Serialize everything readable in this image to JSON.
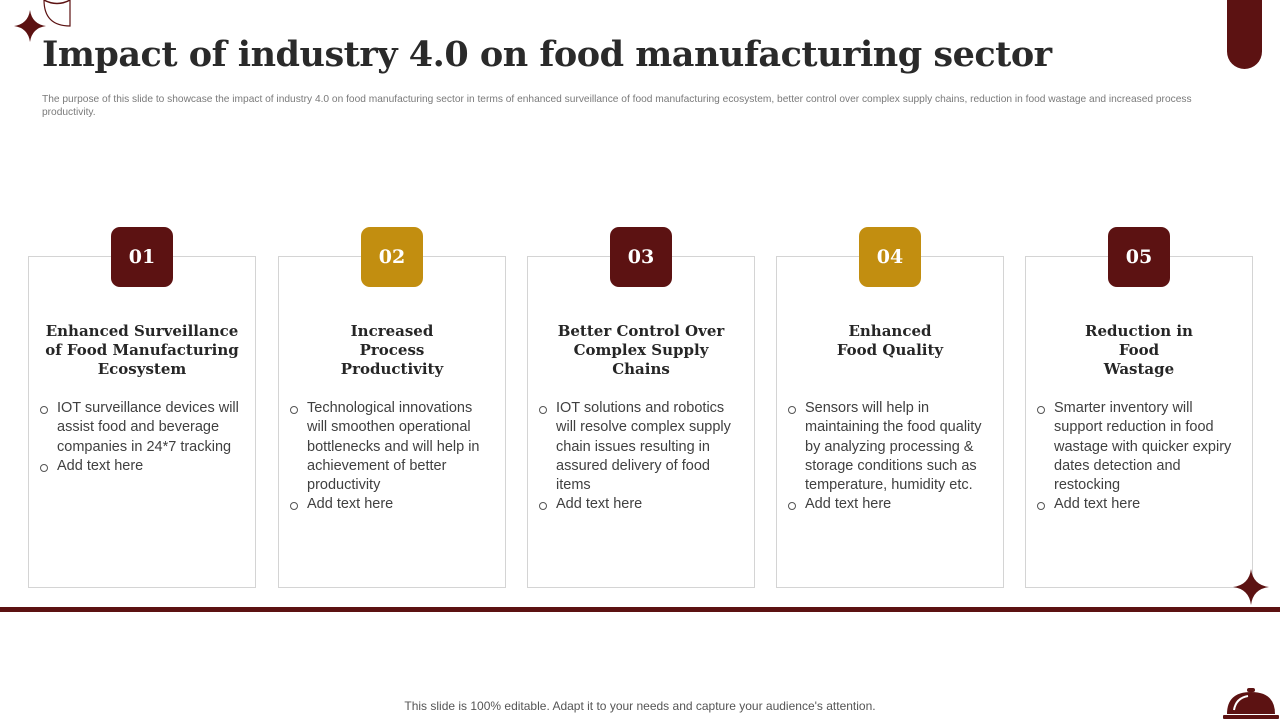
{
  "slide": {
    "title": "Impact of industry 4.0 on food manufacturing sector",
    "subtitle": "The purpose of this slide to showcase the impact of industry 4.0 on food manufacturing sector in terms of  enhanced surveillance of food manufacturing ecosystem, better control over complex supply chains, reduction in food wastage and increased process productivity.",
    "footer": "This slide is 100% editable. Adapt it to your needs and capture your audience's attention."
  },
  "colors": {
    "accent_dark": "#5c1212",
    "accent_gold": "#c28e10"
  },
  "cards": [
    {
      "number": "01",
      "title": "Enhanced Surveillance of Food Manufacturing Ecosystem",
      "bullets": [
        "IOT surveillance devices will assist food and beverage companies in 24*7 tracking",
        "Add text here"
      ]
    },
    {
      "number": "02",
      "title": "Increased Process Productivity",
      "bullets": [
        "Technological innovations will smoothen  operational bottlenecks and will help in achievement of better productivity",
        "Add text here"
      ]
    },
    {
      "number": "03",
      "title": "Better Control Over Complex Supply Chains",
      "bullets": [
        "IOT solutions and robotics will resolve complex supply chain issues resulting in assured delivery of food items",
        "Add text here"
      ]
    },
    {
      "number": "04",
      "title": "Enhanced Food Quality",
      "bullets": [
        "Sensors will help in maintaining the food quality by analyzing processing & storage conditions such as temperature,  humidity etc.",
        "Add text here"
      ]
    },
    {
      "number": "05",
      "title": "Reduction in Food Wastage",
      "bullets": [
        "Smarter inventory will support reduction  in food wastage with quicker expiry dates detection and restocking",
        "Add text here"
      ]
    }
  ]
}
